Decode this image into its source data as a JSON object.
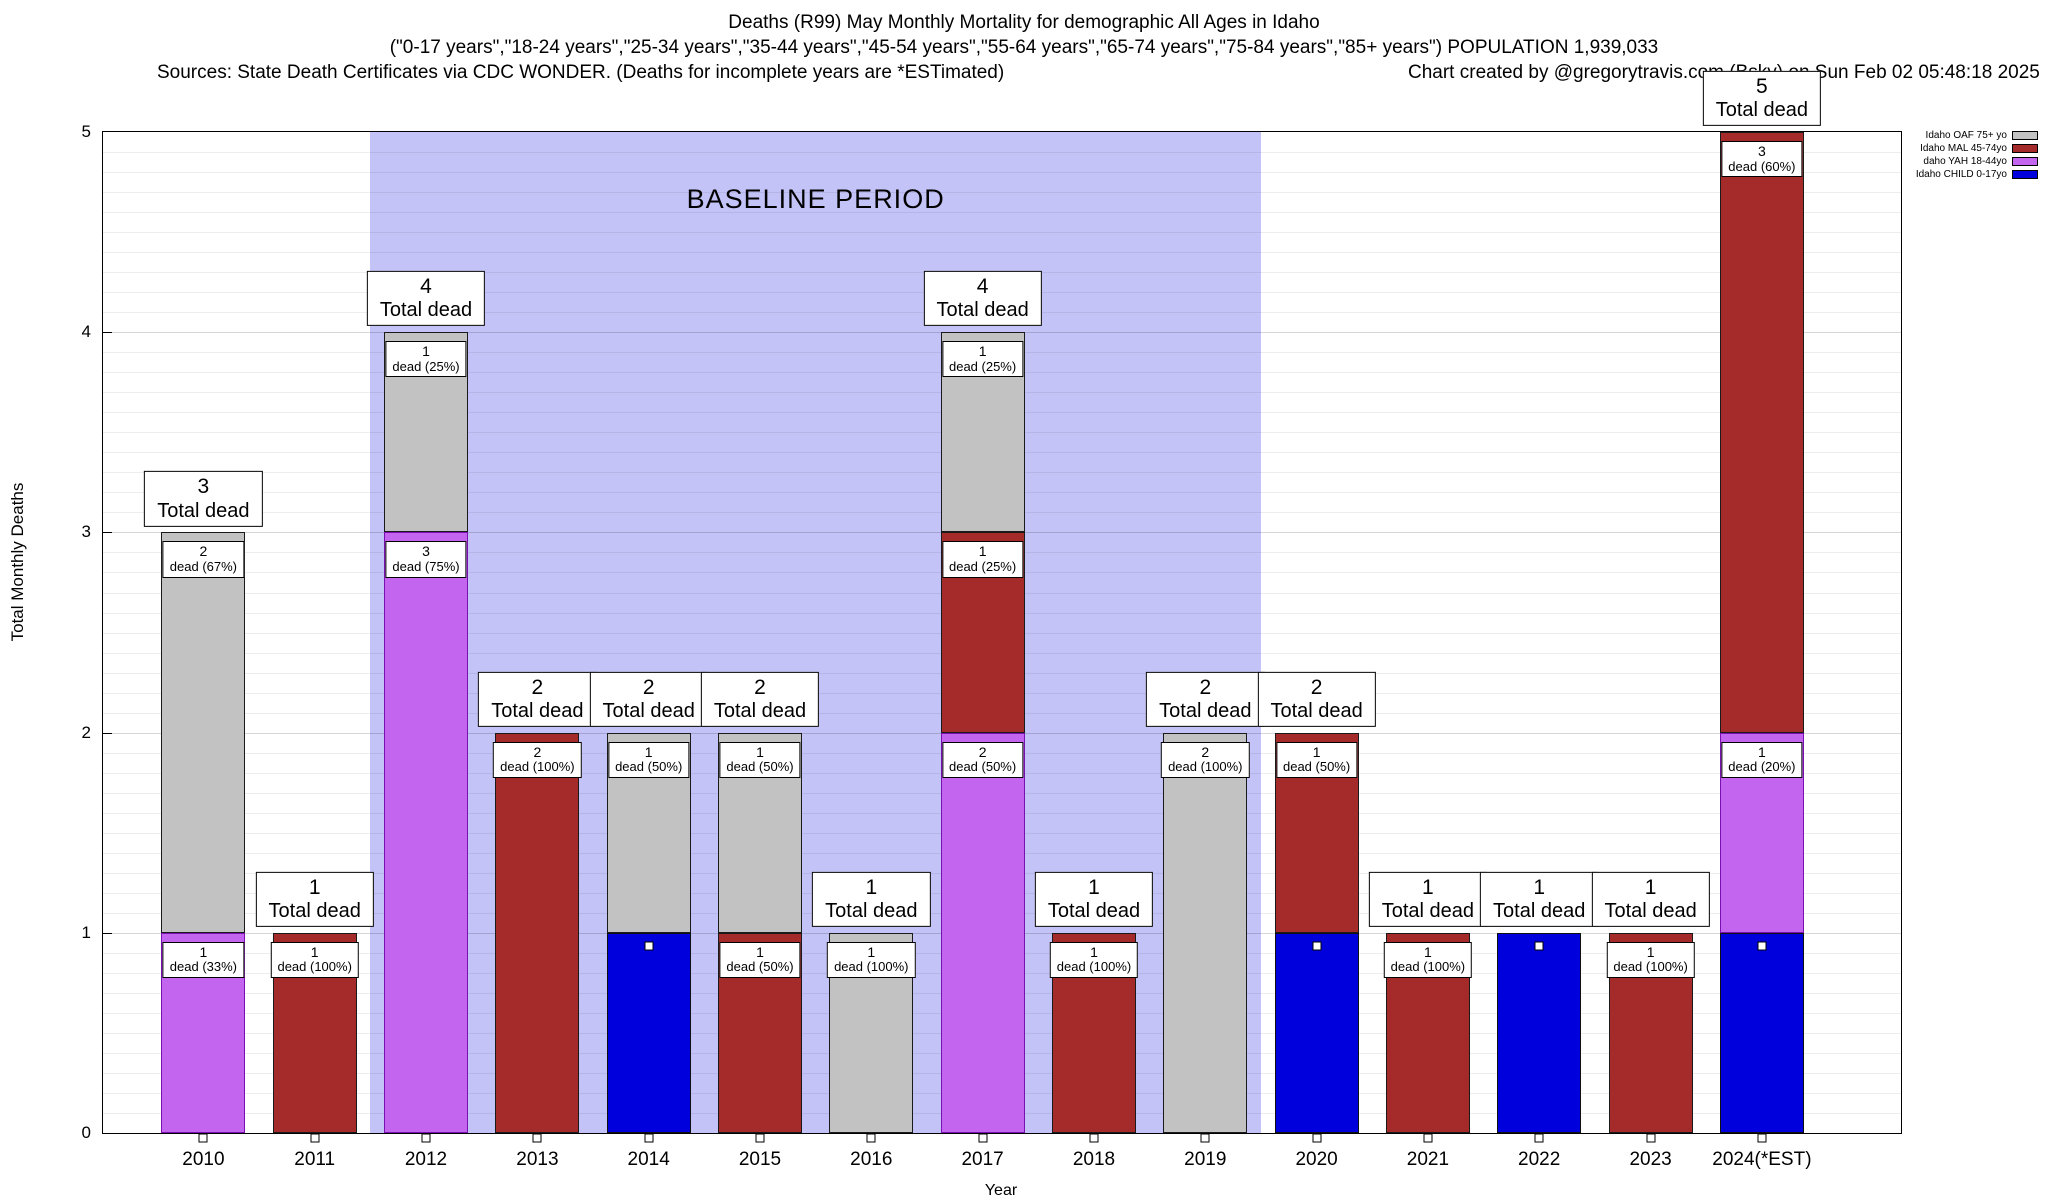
{
  "header": {
    "line1": "Deaths (R99) May Monthly Mortality for demographic All Ages in Idaho",
    "line2": "(\"0-17 years\",\"18-24 years\",\"25-34 years\",\"35-44 years\",\"45-54 years\",\"55-64 years\",\"65-74 years\",\"75-84 years\",\"85+ years\") POPULATION 1,939,033",
    "sources": "Sources: State Death Certificates via CDC WONDER. (Deaths for incomplete years are *ESTimated)",
    "credit": "Chart created by @gregorytravis.com (Bsky) on Sun Feb 02 05:48:18 2025"
  },
  "legend": [
    {
      "label": "Idaho OAF 75+ yo",
      "series": "OAF"
    },
    {
      "label": "Idaho MAL 45-74yo",
      "series": "MAL"
    },
    {
      "label": "daho YAH 18-44yo",
      "series": "YAH"
    },
    {
      "label": "Idaho CHILD 0-17yo",
      "series": "CHILD"
    }
  ],
  "chart_data": {
    "type": "bar",
    "stacked": true,
    "title": "Deaths (R99) May Monthly Mortality for demographic All Ages in Idaho",
    "xlabel": "Year",
    "ylabel": "Total Monthly Deaths",
    "ylim": [
      0,
      5
    ],
    "yticks": [
      0,
      1,
      2,
      3,
      4,
      5
    ],
    "grid": "minor horizontal every 0.1, major every 1",
    "legend_position": "top-right outside",
    "categories": [
      "2010",
      "2011",
      "2012",
      "2013",
      "2014",
      "2015",
      "2016",
      "2017",
      "2018",
      "2019",
      "2020",
      "2021",
      "2022",
      "2023",
      "2024(*EST)"
    ],
    "baseline_period": {
      "label": "BASELINE PERIOD",
      "from_index": 1.5,
      "to_index": 9.5,
      "color": "#c3c3f8"
    },
    "series_colors": {
      "OAF": {
        "fill": "#c2c2c2",
        "border": "#1a1a1a"
      },
      "MAL": {
        "fill": "#a52a2a",
        "border": "#1a1a1a"
      },
      "YAH": {
        "fill": "#c465f0",
        "border": "#7a10b0"
      },
      "CHILD": {
        "fill": "#0000dd",
        "border": "#101010"
      }
    },
    "bars": [
      {
        "category": "2010",
        "total": 3,
        "total_label": [
          "3",
          "Total dead"
        ],
        "segments": [
          {
            "series": "YAH",
            "value": 1,
            "label": [
              "1",
              "dead (33%)"
            ]
          },
          {
            "series": "OAF",
            "value": 2,
            "label": [
              "2",
              "dead (67%)"
            ]
          }
        ]
      },
      {
        "category": "2011",
        "total": 1,
        "total_label": [
          "1",
          "Total dead"
        ],
        "segments": [
          {
            "series": "MAL",
            "value": 1,
            "label": [
              "1",
              "dead (100%)"
            ]
          }
        ]
      },
      {
        "category": "2012",
        "total": 4,
        "total_label": [
          "4",
          "Total dead"
        ],
        "segments": [
          {
            "series": "YAH",
            "value": 3,
            "label": [
              "3",
              "dead (75%)"
            ]
          },
          {
            "series": "OAF",
            "value": 1,
            "label": [
              "1",
              "dead (25%)"
            ]
          }
        ]
      },
      {
        "category": "2013",
        "total": 2,
        "total_label": [
          "2",
          "Total dead"
        ],
        "segments": [
          {
            "series": "MAL",
            "value": 2,
            "label": [
              "2",
              "dead (100%)"
            ]
          }
        ]
      },
      {
        "category": "2014",
        "total": 2,
        "total_label": [
          "2",
          "Total dead"
        ],
        "segments": [
          {
            "series": "CHILD",
            "value": 1,
            "marker": true
          },
          {
            "series": "OAF",
            "value": 1,
            "label": [
              "1",
              "dead (50%)"
            ]
          }
        ]
      },
      {
        "category": "2015",
        "total": 2,
        "total_label": [
          "2",
          "Total dead"
        ],
        "segments": [
          {
            "series": "MAL",
            "value": 1,
            "label": [
              "1",
              "dead (50%)"
            ]
          },
          {
            "series": "OAF",
            "value": 1,
            "label": [
              "1",
              "dead (50%)"
            ]
          }
        ]
      },
      {
        "category": "2016",
        "total": 1,
        "total_label": [
          "1",
          "Total dead"
        ],
        "segments": [
          {
            "series": "OAF",
            "value": 1,
            "label": [
              "1",
              "dead (100%)"
            ]
          }
        ]
      },
      {
        "category": "2017",
        "total": 4,
        "total_label": [
          "4",
          "Total dead"
        ],
        "segments": [
          {
            "series": "YAH",
            "value": 2,
            "label": [
              "2",
              "dead (50%)"
            ]
          },
          {
            "series": "MAL",
            "value": 1,
            "label": [
              "1",
              "dead (25%)"
            ]
          },
          {
            "series": "OAF",
            "value": 1,
            "label": [
              "1",
              "dead (25%)"
            ]
          }
        ]
      },
      {
        "category": "2018",
        "total": 1,
        "total_label": [
          "1",
          "Total dead"
        ],
        "segments": [
          {
            "series": "MAL",
            "value": 1,
            "label": [
              "1",
              "dead (100%)"
            ]
          }
        ]
      },
      {
        "category": "2019",
        "total": 2,
        "total_label": [
          "2",
          "Total dead"
        ],
        "segments": [
          {
            "series": "OAF",
            "value": 2,
            "label": [
              "2",
              "dead (100%)"
            ]
          }
        ]
      },
      {
        "category": "2020",
        "total": 2,
        "total_label": [
          "2",
          "Total dead"
        ],
        "segments": [
          {
            "series": "CHILD",
            "value": 1,
            "marker": true
          },
          {
            "series": "MAL",
            "value": 1,
            "label": [
              "1",
              "dead (50%)"
            ]
          }
        ]
      },
      {
        "category": "2021",
        "total": 1,
        "total_label": [
          "1",
          "Total dead"
        ],
        "segments": [
          {
            "series": "MAL",
            "value": 1,
            "label": [
              "1",
              "dead (100%)"
            ]
          }
        ]
      },
      {
        "category": "2022",
        "total": 1,
        "total_label": [
          "1",
          "Total dead"
        ],
        "segments": [
          {
            "series": "CHILD",
            "value": 1,
            "marker": true
          }
        ]
      },
      {
        "category": "2023",
        "total": 1,
        "total_label": [
          "1",
          "Total dead"
        ],
        "segments": [
          {
            "series": "MAL",
            "value": 1,
            "label": [
              "1",
              "dead (100%)"
            ]
          }
        ]
      },
      {
        "category": "2024(*EST)",
        "total": 5,
        "total_label": [
          "5",
          "Total dead"
        ],
        "segments": [
          {
            "series": "CHILD",
            "value": 1,
            "marker": true
          },
          {
            "series": "YAH",
            "value": 1,
            "label": [
              "1",
              "dead (20%)"
            ]
          },
          {
            "series": "MAL",
            "value": 3,
            "label": [
              "3",
              "dead (60%)"
            ]
          }
        ]
      }
    ]
  }
}
